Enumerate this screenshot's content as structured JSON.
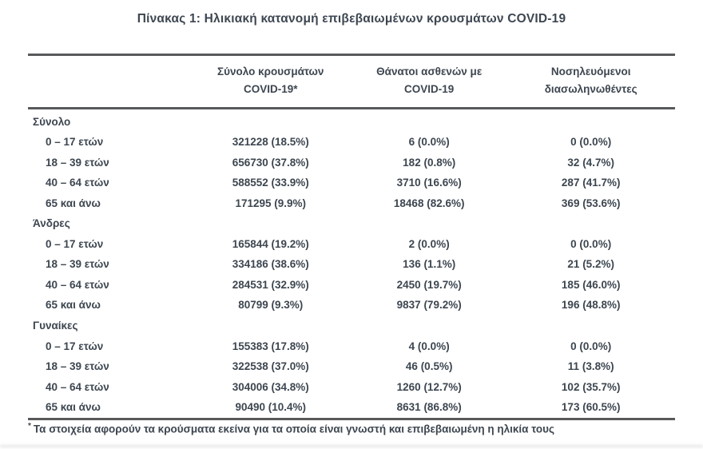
{
  "title": "Πίνακας 1: Ηλικιακή κατανομή επιβεβαιωμένων κρουσμάτων COVID-19",
  "table": {
    "columns": {
      "cases": {
        "line1": "Σύνολο κρουσμάτων",
        "line2": "COVID-19*"
      },
      "deaths": {
        "line1": "Θάνατοι ασθενών με",
        "line2": "COVID-19"
      },
      "intubated": {
        "line1": "Νοσηλευόμενοι",
        "line2": "διασωληνωθέντες"
      }
    },
    "sections": [
      {
        "label": "Σύνολο",
        "rows": [
          {
            "age": "0 – 17 ετών",
            "cases": "321228 (18.5%)",
            "deaths": "6 (0.0%)",
            "intubated": "0 (0.0%)"
          },
          {
            "age": "18 – 39 ετών",
            "cases": "656730 (37.8%)",
            "deaths": "182 (0.8%)",
            "intubated": "32 (4.7%)"
          },
          {
            "age": "40 – 64 ετών",
            "cases": "588552 (33.9%)",
            "deaths": "3710 (16.6%)",
            "intubated": "287 (41.7%)"
          },
          {
            "age": "65 και άνω",
            "cases": "171295 (9.9%)",
            "deaths": "18468 (82.6%)",
            "intubated": "369 (53.6%)"
          }
        ]
      },
      {
        "label": "Άνδρες",
        "rows": [
          {
            "age": "0 – 17 ετών",
            "cases": "165844 (19.2%)",
            "deaths": "2 (0.0%)",
            "intubated": "0 (0.0%)"
          },
          {
            "age": "18 – 39 ετών",
            "cases": "334186 (38.6%)",
            "deaths": "136 (1.1%)",
            "intubated": "21 (5.2%)"
          },
          {
            "age": "40 – 64 ετών",
            "cases": "284531 (32.9%)",
            "deaths": "2450 (19.7%)",
            "intubated": "185 (46.0%)"
          },
          {
            "age": "65 και άνω",
            "cases": "80799 (9.3%)",
            "deaths": "9837 (79.2%)",
            "intubated": "196 (48.8%)"
          }
        ]
      },
      {
        "label": "Γυναίκες",
        "rows": [
          {
            "age": "0 – 17 ετών",
            "cases": "155383 (17.8%)",
            "deaths": "4 (0.0%)",
            "intubated": "0 (0.0%)"
          },
          {
            "age": "18 – 39 ετών",
            "cases": "322538 (37.0%)",
            "deaths": "46 (0.5%)",
            "intubated": "11 (3.8%)"
          },
          {
            "age": "40 – 64 ετών",
            "cases": "304006 (34.8%)",
            "deaths": "1260 (12.7%)",
            "intubated": "102 (35.7%)"
          },
          {
            "age": "65 και άνω",
            "cases": "90490 (10.4%)",
            "deaths": "8631 (86.8%)",
            "intubated": "173 (60.5%)"
          }
        ]
      }
    ]
  },
  "footnote": {
    "marker": "*",
    "text": "Τα στοιχεία αφορούν τα κρούσματα εκείνα για τα οποία είναι γνωστή και επιβεβαιωμένη η ηλικία τους"
  },
  "colors": {
    "text": "#3d4650",
    "rule": "#58595b",
    "background": "#ffffff"
  }
}
